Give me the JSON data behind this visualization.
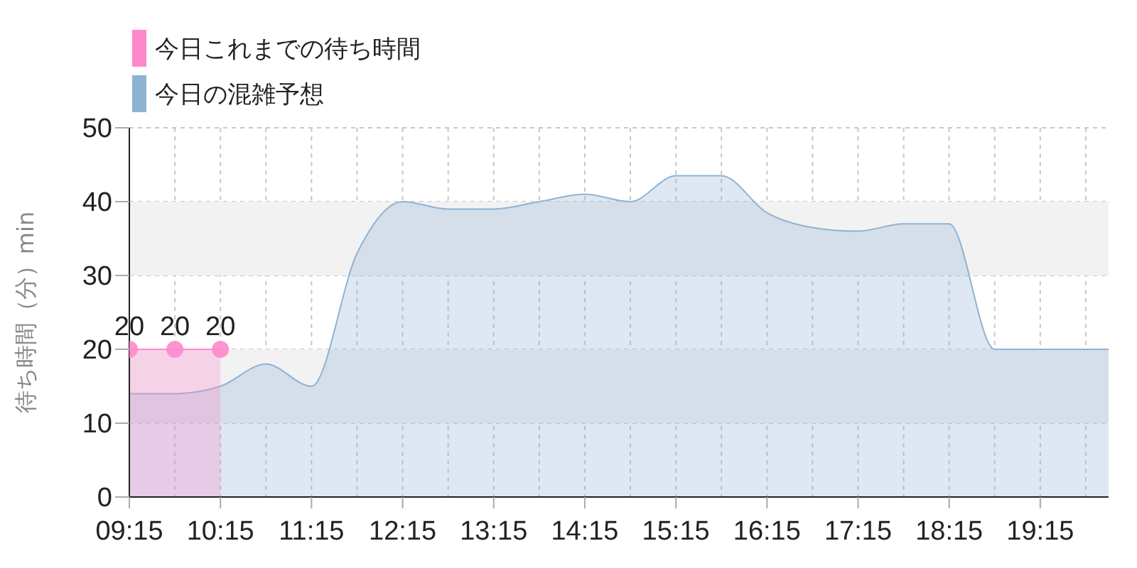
{
  "chart_data": {
    "type": "area",
    "ylabel": "待ち時間（分）min",
    "legend": "top left",
    "grid": true,
    "xlim": [
      9.25,
      20
    ],
    "xticks": [
      {
        "value": 9.25,
        "label": "09:15"
      },
      {
        "value": 9.75,
        "label": null
      },
      {
        "value": 10.25,
        "label": "10:15"
      },
      {
        "value": 10.75,
        "label": null
      },
      {
        "value": 11.25,
        "label": "11:15"
      },
      {
        "value": 11.75,
        "label": null
      },
      {
        "value": 12.25,
        "label": "12:15"
      },
      {
        "value": 12.75,
        "label": null
      },
      {
        "value": 13.25,
        "label": "13:15"
      },
      {
        "value": 13.75,
        "label": null
      },
      {
        "value": 14.25,
        "label": "14:15"
      },
      {
        "value": 14.75,
        "label": null
      },
      {
        "value": 15.25,
        "label": "15:15"
      },
      {
        "value": 15.75,
        "label": null
      },
      {
        "value": 16.25,
        "label": "16:15"
      },
      {
        "value": 16.75,
        "label": null
      },
      {
        "value": 17.25,
        "label": "17:15"
      },
      {
        "value": 17.75,
        "label": null
      },
      {
        "value": 18.25,
        "label": "18:15"
      },
      {
        "value": 18.75,
        "label": null
      },
      {
        "value": 19.25,
        "label": "19:15"
      },
      {
        "value": 19.75,
        "label": null
      }
    ],
    "ylim": [
      0,
      50
    ],
    "yticks": [
      0,
      10,
      20,
      30,
      40,
      50
    ],
    "bands": [
      {
        "axis": "y",
        "from": 10,
        "to": 20,
        "color": "#f2f2f2"
      },
      {
        "axis": "y",
        "from": 30,
        "to": 40,
        "color": "#f2f2f2"
      }
    ],
    "series": [
      {
        "name": "今日の混雑予想",
        "color": "#8fb3d3",
        "marker": "none",
        "x": [
          9.25,
          9.75,
          10.25,
          10.75,
          11.25,
          11.75,
          12.25,
          12.75,
          13.25,
          13.75,
          14.25,
          14.75,
          15.25,
          15.75,
          16.25,
          16.75,
          17.25,
          17.75,
          18.25,
          18.75,
          19.25,
          19.75,
          20
        ],
        "values": [
          14,
          14,
          15,
          18,
          15,
          33,
          40,
          39,
          39,
          40,
          41,
          40,
          43.5,
          43.5,
          38.5,
          36.5,
          36,
          37,
          37,
          20,
          20,
          20,
          20
        ]
      },
      {
        "name": "今日これまでの待ち時間",
        "color": "#ff88cc",
        "marker": "circle",
        "x": [
          9.25,
          9.75,
          10.25
        ],
        "values": [
          20,
          20,
          20
        ],
        "value_labels": [
          "20",
          "20",
          "20"
        ]
      }
    ]
  }
}
